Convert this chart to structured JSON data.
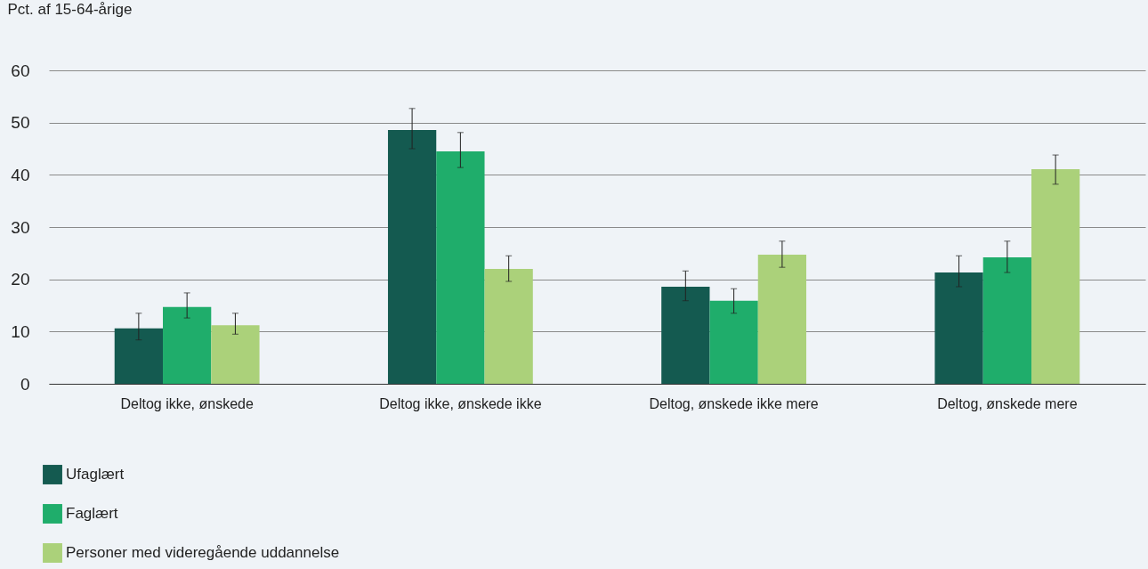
{
  "chart_data": {
    "type": "bar",
    "ylabel": "Pct. af 15-64-årige",
    "categories": [
      "Deltog ikke, ønskede",
      "Deltog ikke, ønskede ikke",
      "Deltog, ønskede ikke mere",
      "Deltog, ønskede mere"
    ],
    "series": [
      {
        "name": "Ufaglært",
        "color": "#145a50",
        "values": [
          10.6,
          48.6,
          18.6,
          21.3
        ],
        "errors": [
          [
            8.4,
            13.5
          ],
          [
            45.0,
            52.7
          ],
          [
            15.9,
            21.6
          ],
          [
            18.6,
            24.5
          ]
        ]
      },
      {
        "name": "Faglært",
        "color": "#1fad6b",
        "values": [
          14.7,
          44.5,
          15.9,
          24.2
        ],
        "errors": [
          [
            12.6,
            17.4
          ],
          [
            41.4,
            48.1
          ],
          [
            13.5,
            18.2
          ],
          [
            21.3,
            27.3
          ]
        ]
      },
      {
        "name": "Personer med videregående uddannelse",
        "color": "#abd17a",
        "values": [
          11.2,
          22.0,
          24.7,
          41.1
        ],
        "errors": [
          [
            9.5,
            13.5
          ],
          [
            19.6,
            24.5
          ],
          [
            22.3,
            27.3
          ],
          [
            38.2,
            43.8
          ]
        ]
      }
    ],
    "ylim": [
      0,
      60
    ],
    "yticks": [
      0,
      10,
      20,
      30,
      40,
      50,
      60
    ],
    "grid": "y",
    "legend": "bottom left"
  }
}
